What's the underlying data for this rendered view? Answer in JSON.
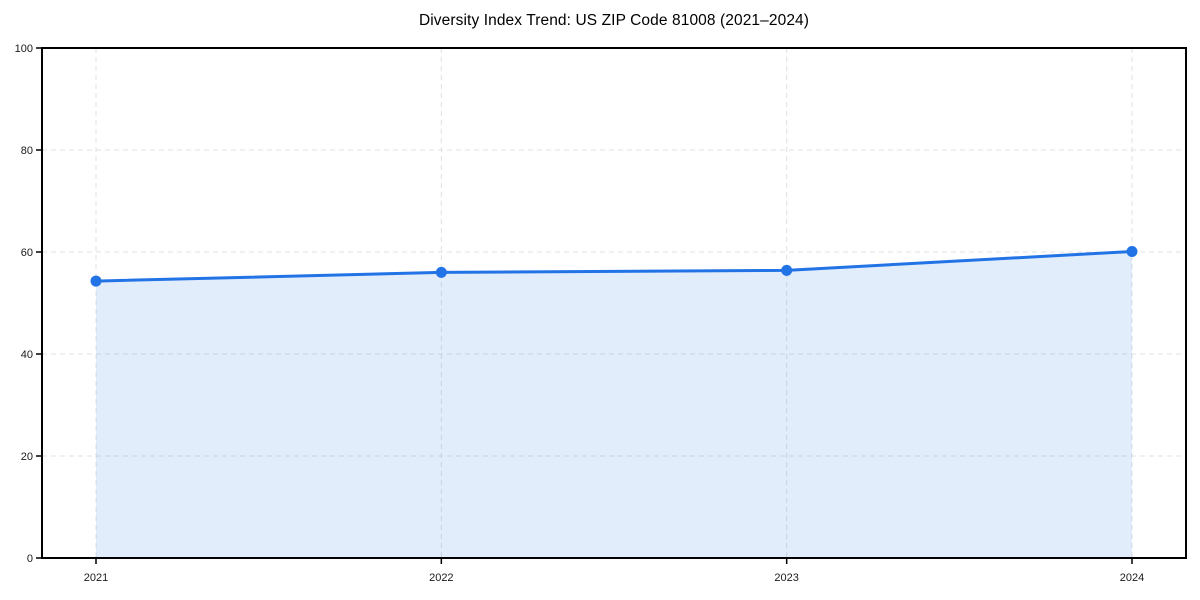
{
  "chart_data": {
    "type": "area",
    "title": "Diversity Index Trend: US ZIP Code 81008 (2021–2024)",
    "x": [
      "2021",
      "2022",
      "2023",
      "2024"
    ],
    "values": [
      54.3,
      56.0,
      56.4,
      60.1
    ],
    "xlabel": "",
    "ylabel": "",
    "ylim": [
      0,
      100
    ],
    "yticks": [
      0,
      20,
      40,
      60,
      80,
      100
    ],
    "grid": true,
    "legend": false,
    "line_color": "#2273e6",
    "marker_color": "#2273e6",
    "fill_color": "#2273e6",
    "fill_opacity": 0.13,
    "grid_color": "#e0e0e0",
    "axis_color": "#000000",
    "tick_label_color": "#1a1a1a",
    "title_color": "#000000"
  }
}
